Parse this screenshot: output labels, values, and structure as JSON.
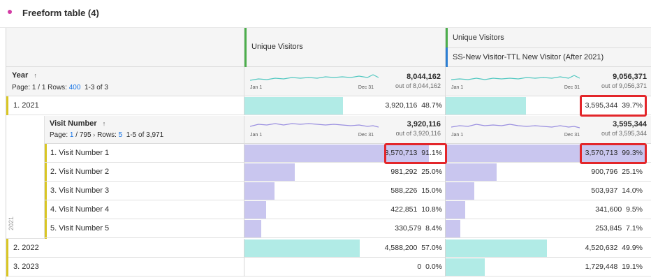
{
  "panel": {
    "title": "Freeform table (4)"
  },
  "columns": [
    {
      "metric": "Unique Visitors",
      "segment": ""
    },
    {
      "metric": "Unique Visitors",
      "segment": "SS-New Visitor-TTL New Visitor (After 2021)"
    }
  ],
  "year_header": {
    "title": "Year",
    "page_label": "Page:",
    "page_value": "1 / 1",
    "rows_label": "Rows:",
    "rows_value": "400",
    "range": "1-3 of 3"
  },
  "totals": [
    {
      "value": "8,044,162",
      "out_of": "out of 8,044,162",
      "spark_start": "Jan 1",
      "spark_end": "Dec 31"
    },
    {
      "value": "9,056,371",
      "out_of": "out of 9,056,371",
      "spark_start": "Jan 1",
      "spark_end": "Dec 31"
    }
  ],
  "visit_header": {
    "title": "Visit Number",
    "page_label": "Page:",
    "page_value": "1",
    "page_total": "/ 795",
    "rows_label": "Rows:",
    "rows_value": "5",
    "range": "1-5 of 3,971",
    "totals": [
      {
        "value": "3,920,116",
        "out_of": "out of 3,920,116",
        "spark_start": "Jan 1",
        "spark_end": "Dec 31"
      },
      {
        "value": "3,595,344",
        "out_of": "out of 3,595,344",
        "spark_start": "Jan 1",
        "spark_end": "Dec 31"
      }
    ]
  },
  "rows": [
    {
      "label": "1.  2021",
      "c1": "3,920,116",
      "p1": "48.7%",
      "f1": 0.487,
      "c2": "3,595,344",
      "p2": "39.7%",
      "f2": 0.397
    },
    {
      "label": "2.  2022",
      "c1": "4,588,200",
      "p1": "57.0%",
      "f1": 0.57,
      "c2": "4,520,632",
      "p2": "49.9%",
      "f2": 0.499
    },
    {
      "label": "3.  2023",
      "c1": "0",
      "p1": "0.0%",
      "f1": 0.0,
      "c2": "1,729,448",
      "p2": "19.1%",
      "f2": 0.191
    }
  ],
  "visit_rows": [
    {
      "label": "1.  Visit Number 1",
      "c1": "3,570,713",
      "p1": "91.1%",
      "f1": 0.911,
      "c2": "3,570,713",
      "p2": "99.3%",
      "f2": 0.993
    },
    {
      "label": "2.  Visit Number 2",
      "c1": "981,292",
      "p1": "25.0%",
      "f1": 0.25,
      "c2": "900,796",
      "p2": "25.1%",
      "f2": 0.251
    },
    {
      "label": "3.  Visit Number 3",
      "c1": "588,226",
      "p1": "15.0%",
      "f1": 0.15,
      "c2": "503,937",
      "p2": "14.0%",
      "f2": 0.14
    },
    {
      "label": "4.  Visit Number 4",
      "c1": "422,851",
      "p1": "10.8%",
      "f1": 0.108,
      "c2": "341,600",
      "p2": "9.5%",
      "f2": 0.095
    },
    {
      "label": "5.  Visit Number 5",
      "c1": "330,579",
      "p1": "8.4%",
      "f1": 0.084,
      "c2": "253,845",
      "p2": "7.1%",
      "f2": 0.071
    }
  ],
  "nested_year": "2021",
  "colors": {
    "teal": "#b1ebe6",
    "purple": "#c9c6ef",
    "highlight": "#e3262a",
    "accent": "#d9c623"
  }
}
